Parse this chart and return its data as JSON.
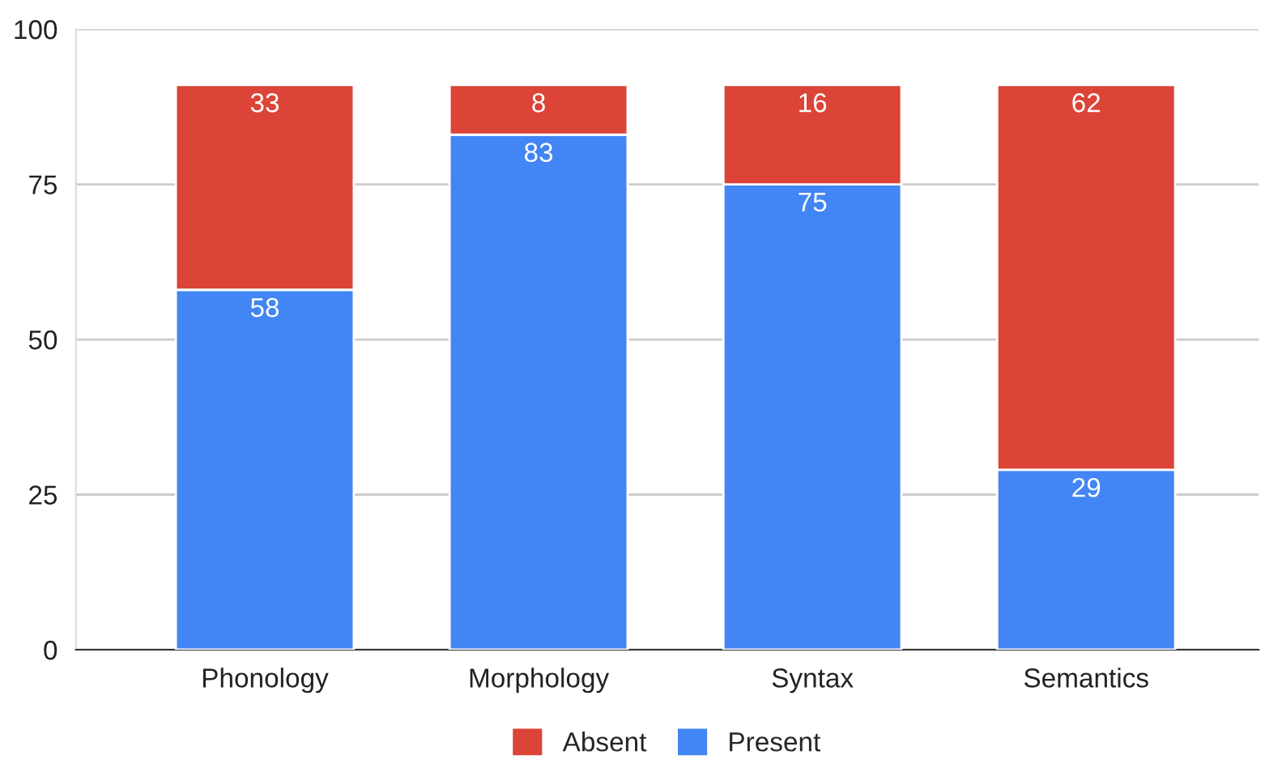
{
  "chart_data": {
    "type": "bar",
    "stacked": true,
    "categories": [
      "Phonology",
      "Morphology",
      "Syntax",
      "Semantics"
    ],
    "series": [
      {
        "name": "Present",
        "color": "#4285f4",
        "values": [
          58,
          83,
          75,
          29
        ]
      },
      {
        "name": "Absent",
        "color": "#db4437",
        "values": [
          33,
          8,
          16,
          62
        ]
      }
    ],
    "ylim": [
      0,
      100
    ],
    "yticks": [
      0,
      25,
      50,
      75,
      100
    ],
    "grid": "y",
    "legend": "bottom",
    "data_labels": true
  }
}
